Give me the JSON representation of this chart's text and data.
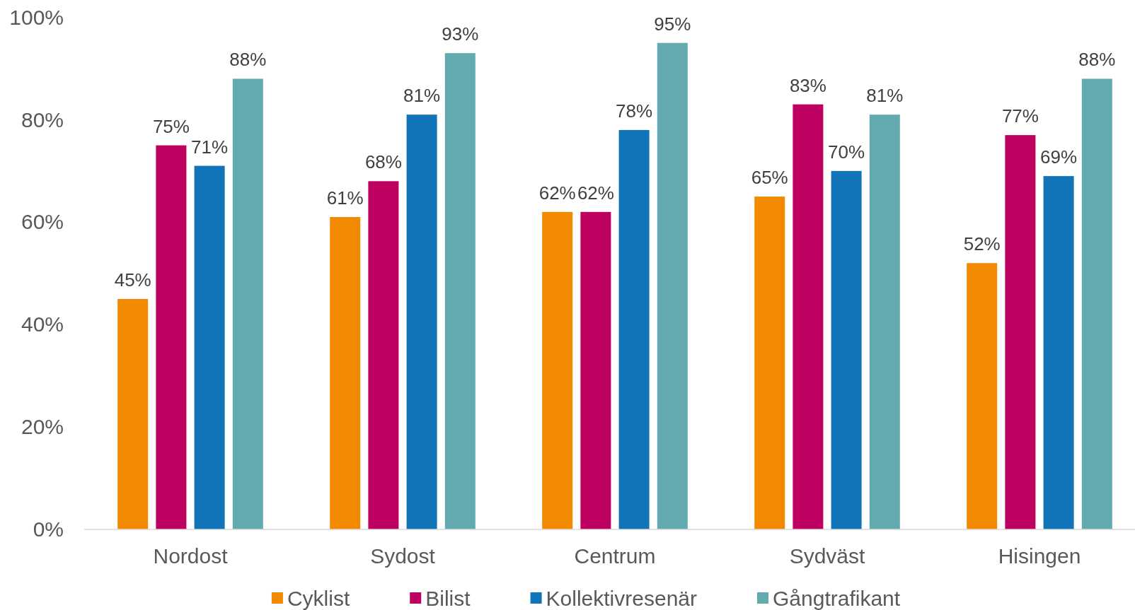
{
  "chart_data": {
    "type": "bar",
    "categories": [
      "Nordost",
      "Sydost",
      "Centrum",
      "Sydväst",
      "Hisingen"
    ],
    "series": [
      {
        "name": "Cyklist",
        "color": "#f18a00",
        "values": [
          45,
          61,
          62,
          65,
          52
        ],
        "value_labels": [
          "45%",
          "61%",
          "62%",
          "65%",
          "52%"
        ]
      },
      {
        "name": "Bilist",
        "color": "#be0060",
        "values": [
          75,
          68,
          62,
          83,
          77
        ],
        "value_labels": [
          "75%",
          "68%",
          "62%",
          "83%",
          "77%"
        ]
      },
      {
        "name": "Kollektivresenär",
        "color": "#1174b8",
        "values": [
          71,
          81,
          78,
          70,
          69
        ],
        "value_labels": [
          "71%",
          "81%",
          "78%",
          "70%",
          "69%"
        ]
      },
      {
        "name": "Gångtrafikant",
        "color": "#62a9b0",
        "values": [
          88,
          93,
          95,
          81,
          88
        ],
        "value_labels": [
          "88%",
          "93%",
          "95%",
          "81%",
          "88%"
        ]
      }
    ],
    "ylim": [
      0,
      100
    ],
    "yticks": [
      {
        "value": 0,
        "label": "0%"
      },
      {
        "value": 20,
        "label": "20%"
      },
      {
        "value": 40,
        "label": "40%"
      },
      {
        "value": 60,
        "label": "60%"
      },
      {
        "value": 80,
        "label": "80%"
      },
      {
        "value": 100,
        "label": "100%"
      }
    ],
    "legend": "bottom"
  }
}
